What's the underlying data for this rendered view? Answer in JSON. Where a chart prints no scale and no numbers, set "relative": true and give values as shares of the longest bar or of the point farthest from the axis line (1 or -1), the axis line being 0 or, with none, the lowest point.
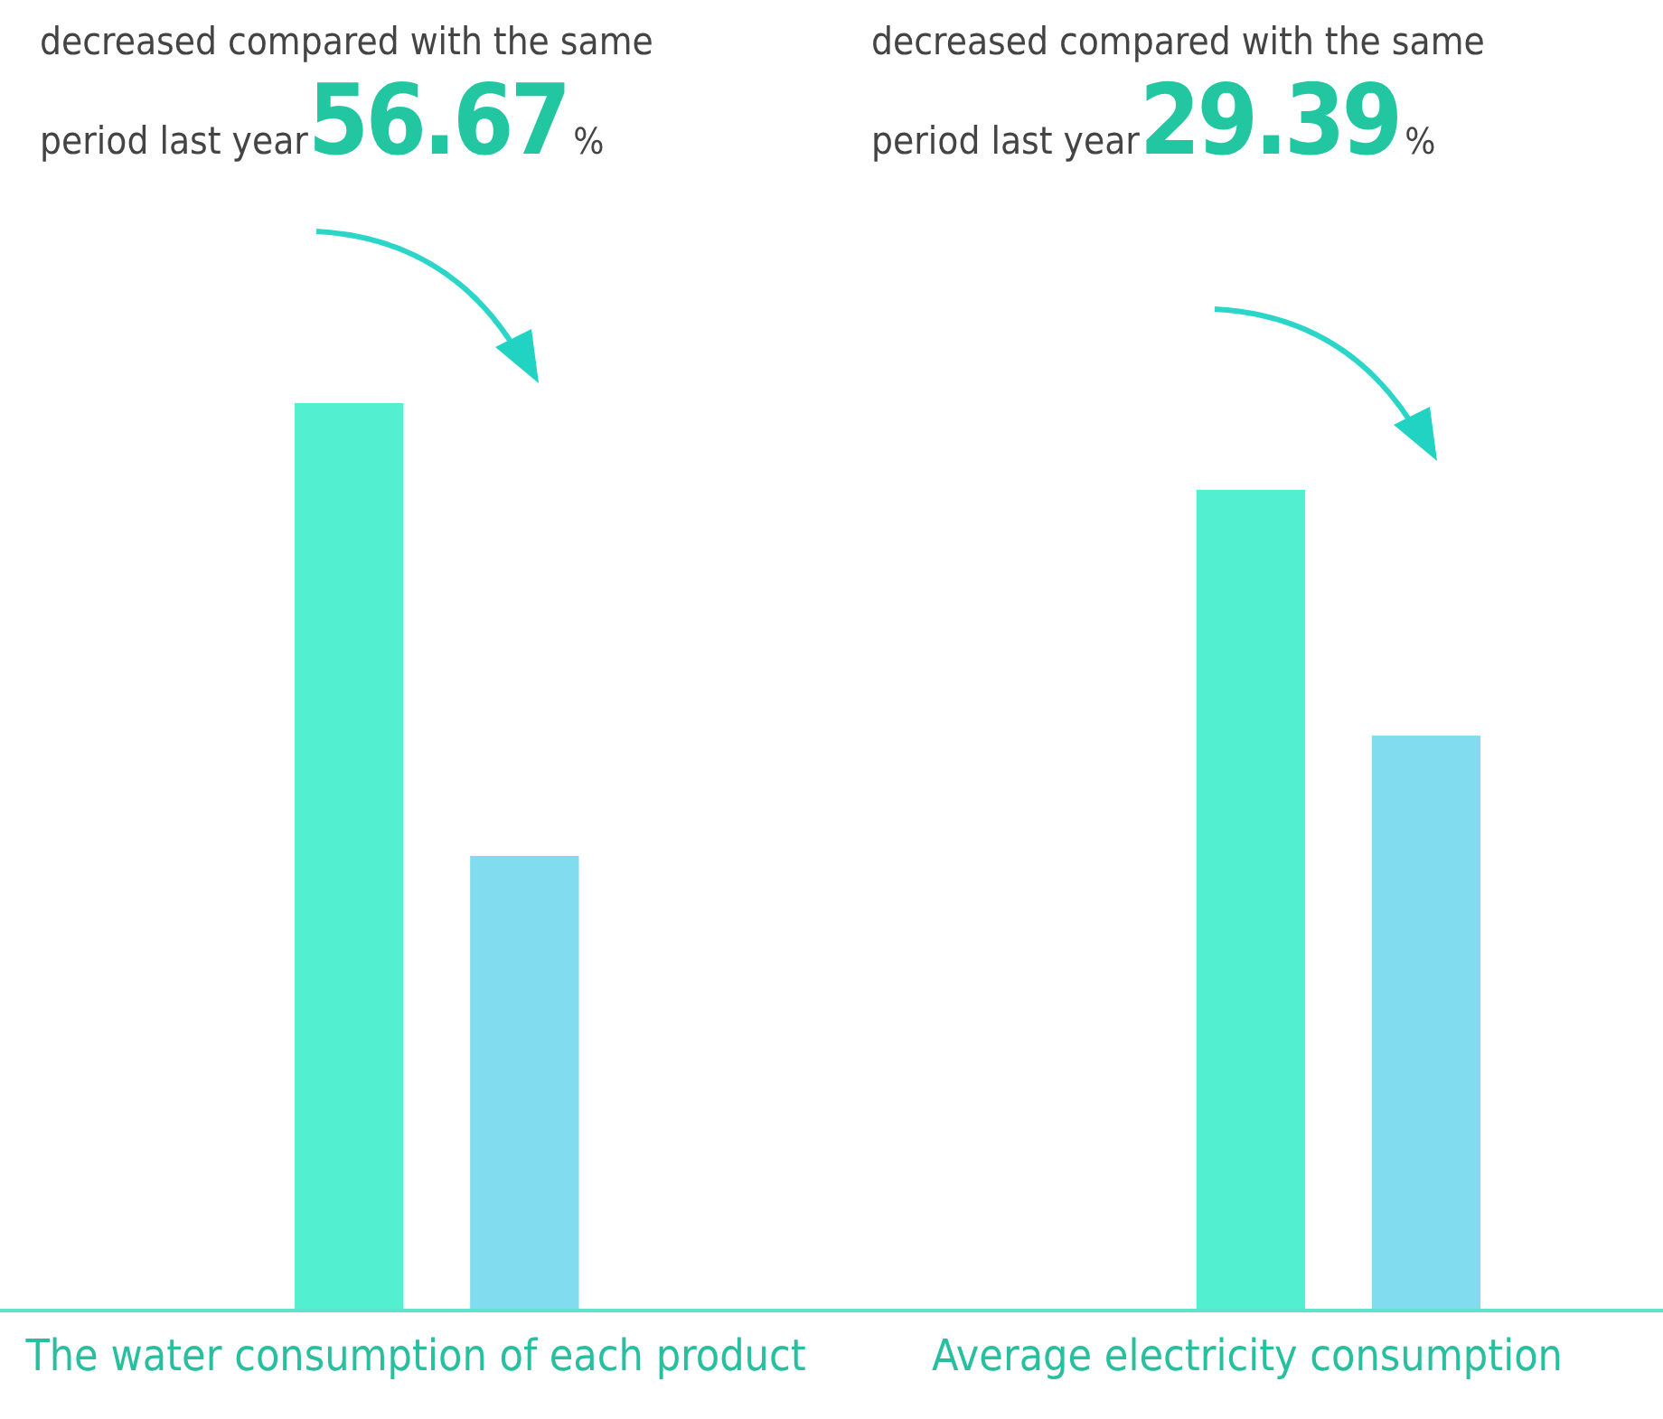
{
  "chart_data": [
    {
      "type": "bar",
      "relative": true,
      "xlabel": "The water consumption of each product",
      "annotations": [
        "decreased compared with the same period last year",
        "56.67",
        "%"
      ],
      "categories": [
        null,
        null
      ],
      "values": [
        1,
        0.5
      ],
      "colors": [
        "#52efd0",
        "#80dcee"
      ]
    },
    {
      "type": "bar",
      "relative": true,
      "xlabel": "Average electricity consumption",
      "annotations": [
        "decreased compared with the same period last year",
        "29.39",
        "%"
      ],
      "categories": [
        null,
        null
      ],
      "values": [
        1,
        0.7
      ],
      "colors": [
        "#52efd0",
        "#80dcee"
      ]
    }
  ]
}
